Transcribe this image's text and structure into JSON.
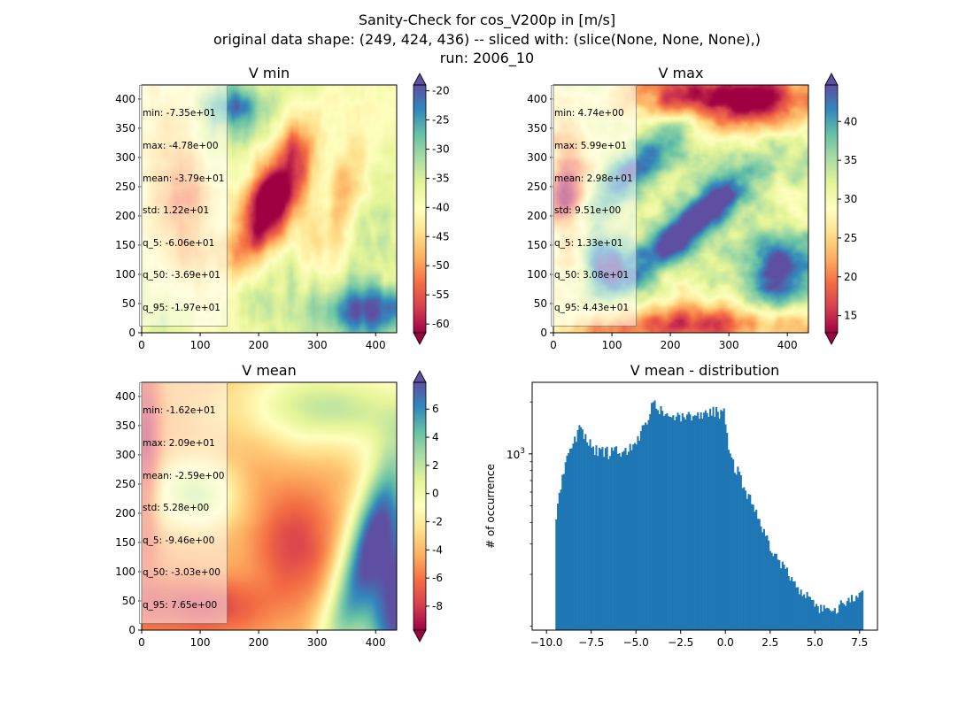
{
  "figure": {
    "title_lines": [
      "Sanity-Check for cos_V200p in [m/s]",
      "original data shape: (249, 424, 436) -- sliced with: (slice(None, None, None),)",
      "run: 2006_10"
    ]
  },
  "colormap": "Spectral",
  "panels": [
    {
      "id": "vmin",
      "title": "V min",
      "stats": [
        "min: -7.35e+01",
        "max: -4.78e+00",
        "mean: -3.79e+01",
        "std: 1.22e+01",
        "q_5: -6.06e+01",
        "q_50: -3.69e+01",
        "q_95: -1.97e+01"
      ],
      "colorbar": {
        "vmin": -61.5,
        "vmax": -19.0,
        "ticks": [
          -20,
          -25,
          -30,
          -35,
          -40,
          -45,
          -50,
          -55,
          -60
        ]
      }
    },
    {
      "id": "vmax",
      "title": "V max",
      "stats": [
        "min: 4.74e+00",
        "max: 5.99e+01",
        "mean: 2.98e+01",
        "std: 9.51e+00",
        "q_5: 1.33e+01",
        "q_50: 3.08e+01",
        "q_95: 4.43e+01"
      ],
      "colorbar": {
        "vmin": 12.8,
        "vmax": 44.7,
        "ticks": [
          40,
          35,
          30,
          25,
          20,
          15
        ]
      }
    },
    {
      "id": "vmean",
      "title": "V mean",
      "stats": [
        "min: -1.62e+01",
        "max: 2.09e+01",
        "mean: -2.59e+00",
        "std: 5.28e+00",
        "q_5: -9.46e+00",
        "q_50: -3.03e+00",
        "q_95: 7.65e+00"
      ],
      "colorbar": {
        "vmin": -9.7,
        "vmax": 7.9,
        "ticks": [
          6,
          4,
          2,
          0,
          -2,
          -4,
          -6,
          -8
        ]
      }
    }
  ],
  "map_axes": {
    "xticks": [
      0,
      100,
      200,
      300,
      400
    ],
    "yticks": [
      0,
      50,
      100,
      150,
      200,
      250,
      300,
      350,
      400
    ],
    "xlim": [
      0,
      436
    ],
    "ylim": [
      0,
      424
    ]
  },
  "chart_data": [
    {
      "type": "heatmap",
      "title": "V min",
      "xlim": [
        0,
        436
      ],
      "ylim": [
        0,
        424
      ],
      "colorbar_range": [
        -61.5,
        -19.0
      ],
      "note_values": {
        "min": -73.5,
        "max": -4.78,
        "mean": -37.9
      }
    },
    {
      "type": "heatmap",
      "title": "V max",
      "xlim": [
        0,
        436
      ],
      "ylim": [
        0,
        424
      ],
      "colorbar_range": [
        12.8,
        44.7
      ],
      "note_values": {
        "min": 4.74,
        "max": 59.9,
        "mean": 29.8
      }
    },
    {
      "type": "heatmap",
      "title": "V mean",
      "xlim": [
        0,
        436
      ],
      "ylim": [
        0,
        424
      ],
      "colorbar_range": [
        -9.7,
        7.9
      ],
      "note_values": {
        "min": -16.2,
        "max": 20.9,
        "mean": -2.59
      }
    },
    {
      "type": "bar",
      "title": "V mean - distribution",
      "xlabel": "",
      "ylabel": "# of occurrence",
      "yscale": "log",
      "ytick_labels": [
        "10^3"
      ],
      "xticks": [
        -10.0,
        -7.5,
        -5.0,
        -2.5,
        0.0,
        2.5,
        5.0,
        7.5
      ],
      "xlim": [
        -10.8,
        8.5
      ],
      "ylim": [
        95,
        2600
      ],
      "bin_range": [
        -9.5,
        7.7
      ],
      "bar_color": "#1f77b4",
      "profile_x": [
        -9.5,
        -9.3,
        -9.1,
        -8.9,
        -8.7,
        -8.5,
        -8.3,
        -8.1,
        -7.9,
        -7.7,
        -7.5,
        -7.2,
        -7.0,
        -6.7,
        -6.5,
        -6.2,
        -6.0,
        -5.7,
        -5.5,
        -5.2,
        -5.0,
        -4.8,
        -4.6,
        -4.4,
        -4.2,
        -4.1,
        -4.0,
        -3.8,
        -3.6,
        -3.3,
        -3.0,
        -2.7,
        -2.4,
        -2.1,
        -1.8,
        -1.5,
        -1.2,
        -0.9,
        -0.6,
        -0.3,
        -0.1,
        0.0,
        0.1,
        0.2,
        0.5,
        0.8,
        1.1,
        1.4,
        1.7,
        1.9,
        2.1,
        2.3,
        2.5,
        2.8,
        3.0,
        3.3,
        3.6,
        3.9,
        4.2,
        4.5,
        4.8,
        5.1,
        5.4,
        5.7,
        6.0,
        6.3,
        6.6,
        6.9,
        7.2,
        7.5,
        7.7
      ],
      "profile_y": [
        420,
        560,
        760,
        900,
        1000,
        1150,
        1250,
        1550,
        1300,
        1250,
        1100,
        1050,
        1000,
        1050,
        1000,
        1050,
        1000,
        1000,
        1020,
        1100,
        1150,
        1250,
        1400,
        1500,
        1750,
        2100,
        2000,
        1800,
        1750,
        1650,
        1600,
        1650,
        1600,
        1650,
        1600,
        1700,
        1650,
        1750,
        1750,
        1700,
        1900,
        1500,
        1200,
        1050,
        850,
        750,
        620,
        540,
        470,
        420,
        360,
        330,
        290,
        260,
        240,
        210,
        200,
        185,
        160,
        150,
        140,
        125,
        130,
        120,
        125,
        130,
        135,
        145,
        145,
        150,
        175
      ]
    }
  ]
}
